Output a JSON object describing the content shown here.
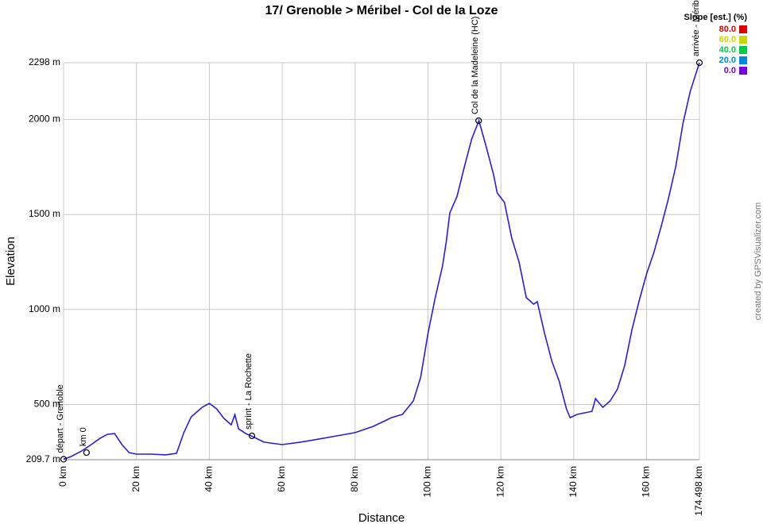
{
  "chart_data": {
    "type": "line",
    "title": "17/ Grenoble > Méribel - Col de la Loze",
    "x_label": "Distance",
    "y_label": "Elevation",
    "credit": "created by GPSVisualizer.com",
    "xlim": [
      0,
      174.498
    ],
    "ylim": [
      209.7,
      2298
    ],
    "xticks": [
      {
        "value": 0,
        "label": "0 km"
      },
      {
        "value": 20,
        "label": "20 km"
      },
      {
        "value": 40,
        "label": "40 km"
      },
      {
        "value": 60,
        "label": "60 km"
      },
      {
        "value": 80,
        "label": "80 km"
      },
      {
        "value": 100,
        "label": "100 km"
      },
      {
        "value": 120,
        "label": "120 km"
      },
      {
        "value": 140,
        "label": "140 km"
      },
      {
        "value": 160,
        "label": "160 km"
      },
      {
        "value": 174.498,
        "label": "174.498 km"
      }
    ],
    "yticks": [
      {
        "value": 209.7,
        "label": "209.7 m"
      },
      {
        "value": 500,
        "label": "500 m"
      },
      {
        "value": 1000,
        "label": "1000 m"
      },
      {
        "value": 1500,
        "label": "1500 m"
      },
      {
        "value": 2000,
        "label": "2000 m"
      },
      {
        "value": 2298,
        "label": "2298 m"
      }
    ],
    "grid": true,
    "series": [
      {
        "color": "#2a1fd0",
        "x": [
          0,
          2,
          5,
          7,
          10,
          12,
          14,
          16,
          18,
          20,
          24,
          28,
          31,
          33,
          35,
          38,
          40,
          42,
          44,
          46,
          47,
          48,
          50,
          51.5,
          55,
          60,
          65,
          70,
          75,
          80,
          85,
          90,
          93,
          96,
          98,
          100,
          102,
          104,
          105,
          106,
          108,
          110,
          112,
          114,
          116,
          118,
          119,
          121,
          123,
          125,
          127,
          129,
          130,
          132,
          134,
          136,
          138,
          139,
          141,
          143,
          145,
          146,
          148,
          150,
          152,
          154,
          156,
          158,
          160,
          162,
          164,
          166,
          168,
          170,
          172,
          174.498
        ],
        "values": [
          212,
          226,
          256,
          281,
          322,
          343,
          347,
          289,
          247,
          239,
          239,
          235,
          243,
          352,
          435,
          485,
          506,
          477,
          427,
          393,
          447,
          372,
          347,
          335,
          302,
          289,
          302,
          318,
          335,
          352,
          385,
          431,
          448,
          519,
          644,
          874,
          1062,
          1229,
          1354,
          1508,
          1596,
          1751,
          1897,
          1993,
          1855,
          1709,
          1613,
          1563,
          1375,
          1249,
          1062,
          1028,
          1041,
          874,
          728,
          623,
          477,
          431,
          448,
          456,
          464,
          531,
          485,
          519,
          581,
          706,
          895,
          1049,
          1187,
          1300,
          1437,
          1583,
          1751,
          1981,
          2148,
          2298
        ]
      }
    ],
    "waypoints": [
      {
        "x": 0,
        "y": 212,
        "label": "départ - Grenoble"
      },
      {
        "x": 6.3,
        "y": 247,
        "label": "km 0"
      },
      {
        "x": 51.7,
        "y": 335,
        "label": "sprint - La Rochette"
      },
      {
        "x": 113.9,
        "y": 1993,
        "label": "Col de la Madeleine (HC)"
      },
      {
        "x": 174.498,
        "y": 2298,
        "label": "arrivée - Méribel"
      }
    ],
    "legend": {
      "title": "Slope [est.] (%)",
      "items": [
        {
          "value": 80,
          "label": "80.0",
          "color": "#dd0000"
        },
        {
          "value": 60,
          "label": "60.0",
          "color": "#c8d800"
        },
        {
          "value": 40,
          "label": "40.0",
          "color": "#00cc44"
        },
        {
          "value": 20,
          "label": "20.0",
          "color": "#0088dd"
        },
        {
          "value": 0,
          "label": "0.0",
          "color": "#7700dd"
        }
      ]
    }
  }
}
